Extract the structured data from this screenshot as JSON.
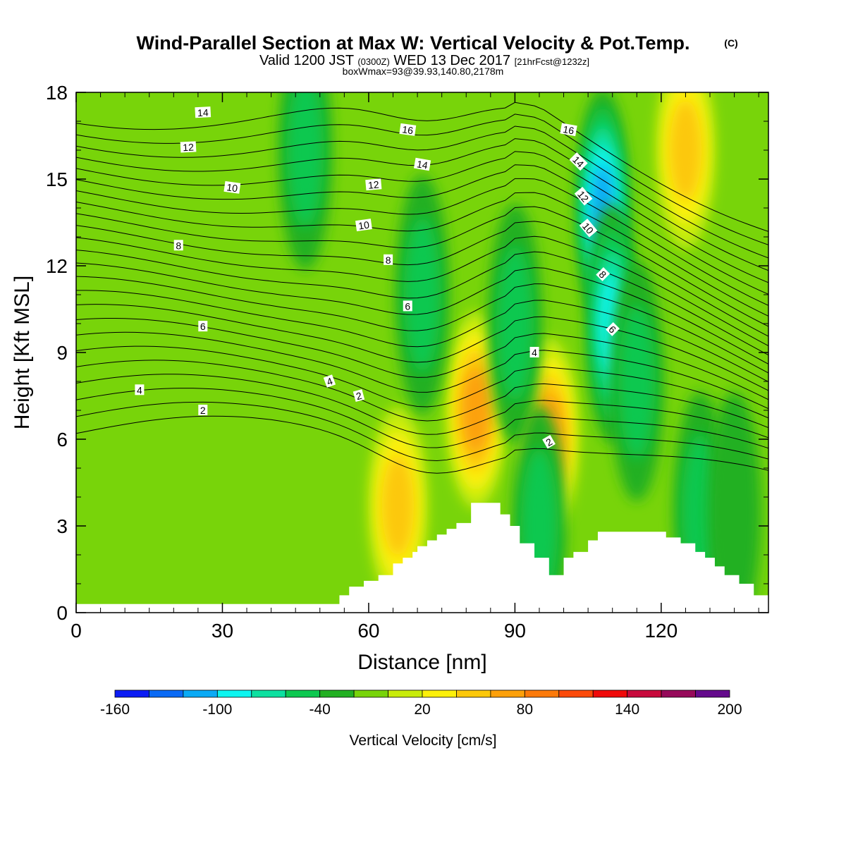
{
  "title": {
    "main": "Wind-Parallel Section at Max W: Vertical Velocity & Pot.Temp.",
    "copyright": "(C)",
    "valid_prefix": "Valid 1200 JST",
    "valid_utc": "(0300Z)",
    "valid_date": "WED 13 Dec 2017",
    "forecast": "[21hrFcst@1232z]",
    "box_info": "boxWmax=93@39.93,140.80,2178m"
  },
  "chart_data": {
    "type": "heatmap",
    "title": "Wind-Parallel Section at Max W: Vertical Velocity & Pot.Temp.",
    "xlabel": "Distance [nm]",
    "ylabel": "Height [Kft MSL]",
    "xlim": [
      0,
      142
    ],
    "ylim": [
      0,
      18
    ],
    "x_ticks": [
      0,
      30,
      60,
      90,
      120
    ],
    "y_ticks": [
      0,
      3,
      6,
      9,
      12,
      15,
      18
    ],
    "x_tick_labels": [
      "0",
      "30",
      "60",
      "90",
      "120"
    ],
    "y_tick_labels": [
      "0",
      "3",
      "6",
      "9",
      "12",
      "15",
      "18"
    ],
    "colorbar": {
      "title": "Vertical Velocity [cm/s]",
      "levels": [
        -160,
        -140,
        -120,
        -100,
        -80,
        -60,
        -40,
        -20,
        0,
        20,
        40,
        60,
        80,
        100,
        120,
        140,
        160,
        180,
        200
      ],
      "labels": [
        "-160",
        "-100",
        "-40",
        "20",
        "80",
        "140",
        "200"
      ],
      "label_values": [
        -160,
        -100,
        -40,
        20,
        80,
        140,
        200
      ],
      "colors": [
        "#0b1cf4",
        "#0a6af5",
        "#0aaaf5",
        "#0cf5f0",
        "#0ce0a0",
        "#0cc850",
        "#22b022",
        "#78d40a",
        "#c8ec0a",
        "#fcf00a",
        "#fcc80a",
        "#fca00a",
        "#fc7a0a",
        "#fc4a0a",
        "#f00a0a",
        "#c80a3c",
        "#960a5a",
        "#640a8c"
      ]
    },
    "grid": false,
    "terrain_color": "#ffffff",
    "terrain_profile": {
      "x": [
        0,
        52,
        54,
        56,
        59,
        62,
        65,
        67,
        69,
        70,
        72,
        74,
        76,
        78,
        81,
        84,
        87,
        89,
        91,
        94,
        97,
        100,
        102,
        105,
        107,
        110,
        113,
        116,
        119,
        121,
        124,
        127,
        129,
        131,
        133,
        136,
        139,
        142
      ],
      "y": [
        0.3,
        0.3,
        0.6,
        0.9,
        1.1,
        1.3,
        1.7,
        1.9,
        2.1,
        2.3,
        2.5,
        2.7,
        2.9,
        3.1,
        3.8,
        3.8,
        3.4,
        3.0,
        2.4,
        1.9,
        1.3,
        1.9,
        2.1,
        2.5,
        2.8,
        2.8,
        2.8,
        2.8,
        2.8,
        2.6,
        2.4,
        2.1,
        1.9,
        1.6,
        1.3,
        1.0,
        0.6,
        0.6
      ]
    },
    "velocity_features": [
      {
        "type": "updraft",
        "x": 82,
        "y": 7.0,
        "value": 70
      },
      {
        "type": "updraft",
        "x": 97,
        "y": 6.1,
        "value": 70
      },
      {
        "type": "updraft",
        "x": 66,
        "y": 3.7,
        "value": 55
      },
      {
        "type": "updraft",
        "x": 125,
        "y": 16.0,
        "value": 45
      },
      {
        "type": "downdraft",
        "x": 108,
        "y": 14.0,
        "value": -100
      },
      {
        "type": "downdraft",
        "x": 110,
        "y": 10.0,
        "value": -80
      },
      {
        "type": "downdraft",
        "x": 115,
        "y": 8.0,
        "value": -50
      },
      {
        "type": "downdraft",
        "x": 47,
        "y": 16.0,
        "value": -40
      },
      {
        "type": "downdraft",
        "x": 71,
        "y": 11.0,
        "value": -45
      },
      {
        "type": "downdraft",
        "x": 90,
        "y": 10.0,
        "value": -45
      },
      {
        "type": "downdraft",
        "x": 95,
        "y": 3.0,
        "value": -45
      },
      {
        "type": "downdraft",
        "x": 128,
        "y": 3.5,
        "value": -40
      },
      {
        "type": "downdraft",
        "x": 135,
        "y": 3.5,
        "value": -30
      }
    ],
    "theta_contours": {
      "levels": [
        2,
        4,
        6,
        8,
        10,
        12,
        14,
        16
      ],
      "labels": [
        {
          "text": "14",
          "x": 26,
          "y": 17.3,
          "angle": -3
        },
        {
          "text": "12",
          "x": 23,
          "y": 16.1,
          "angle": -3
        },
        {
          "text": "10",
          "x": 32,
          "y": 14.7,
          "angle": 8
        },
        {
          "text": "8",
          "x": 21,
          "y": 12.7,
          "angle": 0
        },
        {
          "text": "6",
          "x": 26,
          "y": 9.9,
          "angle": 0
        },
        {
          "text": "4",
          "x": 13,
          "y": 7.7,
          "angle": 0
        },
        {
          "text": "2",
          "x": 26,
          "y": 7.0,
          "angle": 0
        },
        {
          "text": "16",
          "x": 68,
          "y": 16.7,
          "angle": 8
        },
        {
          "text": "14",
          "x": 71,
          "y": 15.5,
          "angle": 10
        },
        {
          "text": "12",
          "x": 61,
          "y": 14.8,
          "angle": -5
        },
        {
          "text": "10",
          "x": 59,
          "y": 13.4,
          "angle": -8
        },
        {
          "text": "8",
          "x": 64,
          "y": 12.2,
          "angle": 0
        },
        {
          "text": "6",
          "x": 68,
          "y": 10.6,
          "angle": 0
        },
        {
          "text": "4",
          "x": 52,
          "y": 8.0,
          "angle": -20
        },
        {
          "text": "2",
          "x": 58,
          "y": 7.5,
          "angle": -15
        },
        {
          "text": "16",
          "x": 101,
          "y": 16.7,
          "angle": 10
        },
        {
          "text": "14",
          "x": 103,
          "y": 15.6,
          "angle": 45
        },
        {
          "text": "12",
          "x": 104,
          "y": 14.4,
          "angle": 50
        },
        {
          "text": "10",
          "x": 105,
          "y": 13.3,
          "angle": 50
        },
        {
          "text": "8",
          "x": 108,
          "y": 11.7,
          "angle": 45
        },
        {
          "text": "6",
          "x": 110,
          "y": 9.8,
          "angle": 45
        },
        {
          "text": "4",
          "x": 94,
          "y": 9.0,
          "angle": 0
        },
        {
          "text": "2",
          "x": 97,
          "y": 5.9,
          "angle": -30
        }
      ]
    }
  }
}
